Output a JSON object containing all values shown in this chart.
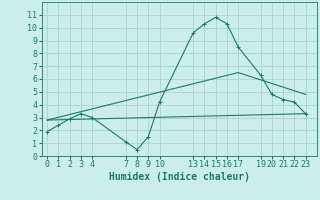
{
  "xlabel": "Humidex (Indice chaleur)",
  "bg_color": "#cceee8",
  "grid_color": "#aad4cc",
  "line_color": "#1a7a6e",
  "ylim": [
    0,
    12
  ],
  "xlim": [
    -0.5,
    24.0
  ],
  "yticks": [
    0,
    1,
    2,
    3,
    4,
    5,
    6,
    7,
    8,
    9,
    10,
    11
  ],
  "xticks": [
    0,
    1,
    2,
    3,
    4,
    7,
    8,
    9,
    10,
    13,
    14,
    15,
    16,
    17,
    19,
    20,
    21,
    22,
    23
  ],
  "series1_x": [
    0,
    1,
    2,
    3,
    4,
    7,
    8,
    9,
    10,
    13,
    14,
    15,
    16,
    17,
    19,
    20,
    21,
    22,
    23
  ],
  "series1_y": [
    1.9,
    2.4,
    2.9,
    3.3,
    3.0,
    1.1,
    0.5,
    1.5,
    4.2,
    9.6,
    10.3,
    10.8,
    10.3,
    8.5,
    6.3,
    4.8,
    4.4,
    4.2,
    3.3
  ],
  "series2_x": [
    0,
    23
  ],
  "series2_y": [
    2.8,
    3.3
  ],
  "series3_x": [
    0,
    17,
    23
  ],
  "series3_y": [
    2.8,
    6.5,
    4.8
  ],
  "xlabel_fontsize": 7,
  "tick_fontsize": 6,
  "lw": 0.8,
  "marker_size": 2.5
}
